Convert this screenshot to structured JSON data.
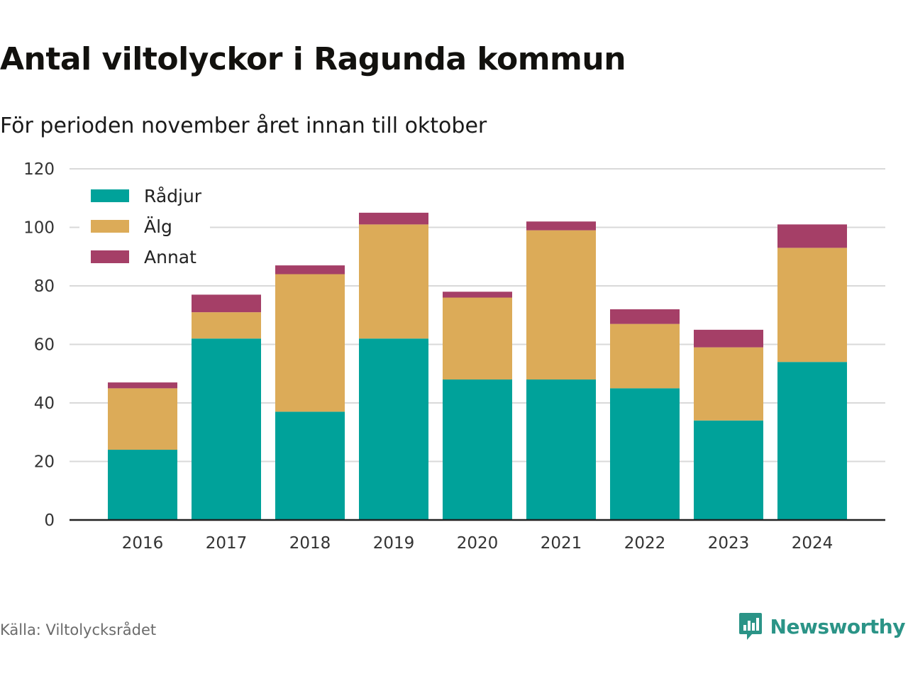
{
  "header": {
    "title": "Antal viltolyckor i Ragunda kommun",
    "subtitle": "För perioden november året innan till oktober"
  },
  "footer": {
    "source": "Källa: Viltolycksrådet",
    "brand": "Newsworthy",
    "brand_icon": "bar-chart-speech-bubble-icon"
  },
  "colors": {
    "Rådjur": "#00a29a",
    "Älg": "#dcab58",
    "Annat": "#a53f67",
    "grid": "#d9d9d9",
    "axis": "#222222",
    "brand": "#2b9487"
  },
  "chart_data": {
    "type": "bar",
    "stacked": true,
    "title": "Antal viltolyckor i Ragunda kommun",
    "subtitle": "För perioden november året innan till oktober",
    "categories": [
      "2016",
      "2017",
      "2018",
      "2019",
      "2020",
      "2021",
      "2022",
      "2023",
      "2024"
    ],
    "series": [
      {
        "name": "Rådjur",
        "values": [
          24,
          62,
          37,
          62,
          48,
          48,
          45,
          34,
          54
        ]
      },
      {
        "name": "Älg",
        "values": [
          21,
          9,
          47,
          39,
          28,
          51,
          22,
          25,
          39
        ]
      },
      {
        "name": "Annat",
        "values": [
          2,
          6,
          3,
          4,
          2,
          3,
          5,
          6,
          8
        ]
      }
    ],
    "ylim": [
      0,
      120
    ],
    "yticks": [
      "0",
      "20",
      "40",
      "60",
      "80",
      "100",
      "120"
    ],
    "grid": true,
    "legend_position": "top-left",
    "xlabel": "",
    "ylabel": ""
  }
}
